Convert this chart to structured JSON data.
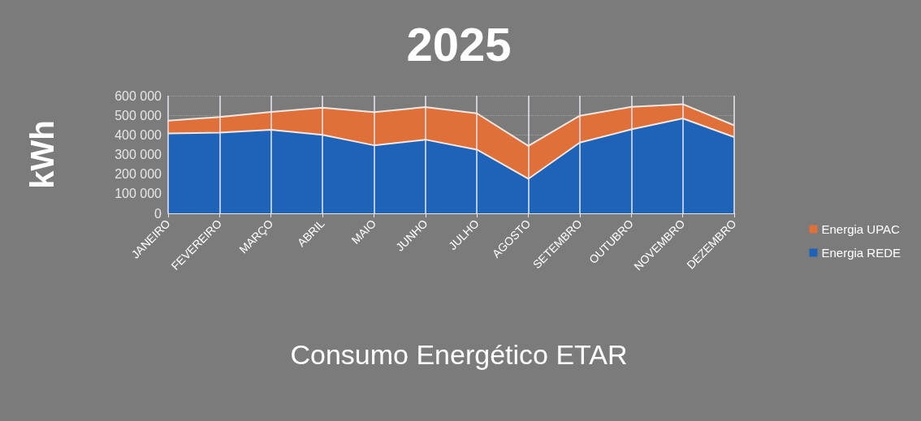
{
  "chart_data": {
    "type": "area",
    "title": "2025",
    "xlabel": "Consumo Energético ETAR",
    "ylabel": "kWh",
    "categories": [
      "JANEIRO",
      "FEVEREIRO",
      "MARÇO",
      "ABRIL",
      "MAIO",
      "JUNHO",
      "JULHO",
      "AGOSTO",
      "SETEMBRO",
      "OUTUBRO",
      "NOVEMBRO",
      "DEZEMBRO"
    ],
    "series": [
      {
        "name": "Energia REDE",
        "color": "#1f63b8",
        "values": [
          408000,
          412000,
          426000,
          400000,
          347000,
          376000,
          325000,
          176000,
          361000,
          428000,
          484000,
          389000
        ]
      },
      {
        "name": "Energia UPAC",
        "color": "#e0703a",
        "values": [
          65000,
          79000,
          91000,
          139000,
          169000,
          166000,
          185000,
          168000,
          137000,
          115000,
          73000,
          60000
        ]
      }
    ],
    "stacked": true,
    "ylim": [
      0,
      600000
    ],
    "yticks": [
      {
        "value": 0,
        "label": "0"
      },
      {
        "value": 100000,
        "label": "100 000"
      },
      {
        "value": 200000,
        "label": "200 000"
      },
      {
        "value": 300000,
        "label": "300 000"
      },
      {
        "value": 400000,
        "label": "400 000"
      },
      {
        "value": 500000,
        "label": "500 000"
      },
      {
        "value": 600000,
        "label": "600 000"
      }
    ],
    "grid": true,
    "legend": "right"
  }
}
